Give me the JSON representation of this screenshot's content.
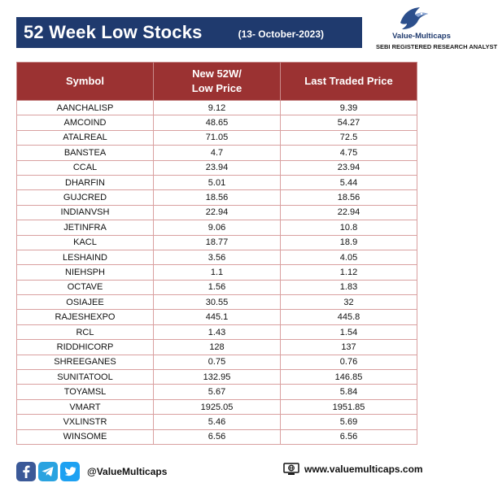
{
  "header": {
    "title": "52 Week Low Stocks",
    "date": "(13- October-2023)"
  },
  "brand": {
    "name": "Value-Multicaps",
    "tagline": "SEBI REGISTERED RESEARCH ANALYST"
  },
  "table": {
    "columns": [
      "Symbol",
      "New 52W/ Low Price",
      "Last Traded Price"
    ],
    "rows": [
      [
        "AANCHALISP",
        "9.12",
        "9.39"
      ],
      [
        "AMCOIND",
        "48.65",
        "54.27"
      ],
      [
        "ATALREAL",
        "71.05",
        "72.5"
      ],
      [
        "BANSTEA",
        "4.7",
        "4.75"
      ],
      [
        "CCAL",
        "23.94",
        "23.94"
      ],
      [
        "DHARFIN",
        "5.01",
        "5.44"
      ],
      [
        "GUJCRED",
        "18.56",
        "18.56"
      ],
      [
        "INDIANVSH",
        "22.94",
        "22.94"
      ],
      [
        "JETINFRA",
        "9.06",
        "10.8"
      ],
      [
        "KACL",
        "18.77",
        "18.9"
      ],
      [
        "LESHAIND",
        "3.56",
        "4.05"
      ],
      [
        "NIEHSPH",
        "1.1",
        "1.12"
      ],
      [
        "OCTAVE",
        "1.56",
        "1.83"
      ],
      [
        "OSIAJEE",
        "30.55",
        "32"
      ],
      [
        "RAJESHEXPO",
        "445.1",
        "445.8"
      ],
      [
        "RCL",
        "1.43",
        "1.54"
      ],
      [
        "RIDDHICORP",
        "128",
        "137"
      ],
      [
        "SHREEGANES",
        "0.75",
        "0.76"
      ],
      [
        "SUNITATOOL",
        "132.95",
        "146.85"
      ],
      [
        "TOYAMSL",
        "5.67",
        "5.84"
      ],
      [
        "VMART",
        "1925.05",
        "1951.85"
      ],
      [
        "VXLINSTR",
        "5.46",
        "5.69"
      ],
      [
        "WINSOME",
        "6.56",
        "6.56"
      ]
    ]
  },
  "footer": {
    "handle": "@ValueMulticaps",
    "website": "www.valuemulticaps.com",
    "icons": [
      "facebook-icon",
      "telegram-icon",
      "twitter-icon",
      "globe-icon"
    ]
  },
  "colors": {
    "title_bg": "#1f3a6e",
    "header_bg": "#9b3232",
    "grid": "#d9a0a0"
  }
}
